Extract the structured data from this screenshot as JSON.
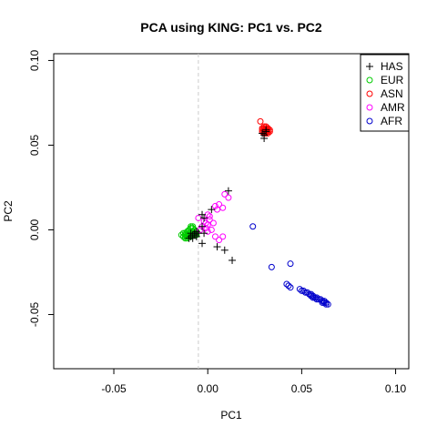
{
  "chart_data": {
    "type": "scatter",
    "title": "PCA using KING: PC1 vs. PC2",
    "xlabel": "PC1",
    "ylabel": "PC2",
    "xlim": [
      -0.082,
      0.107
    ],
    "ylim": [
      -0.082,
      0.104
    ],
    "xticks": [
      -0.05,
      0.0,
      0.05,
      0.1
    ],
    "xtick_labels": [
      "-0.05",
      "0.00",
      "0.05",
      "0.10"
    ],
    "yticks": [
      -0.05,
      0.0,
      0.05,
      0.1
    ],
    "ytick_labels": [
      "-0.05",
      "0.00",
      "0.05",
      "0.10"
    ],
    "reference_line": {
      "x": -0.005,
      "style": "dashed",
      "color": "#cccccc"
    },
    "legend_position": "top-right",
    "grid": false,
    "series": [
      {
        "name": "HAS",
        "marker": "plus",
        "color": "#000000",
        "points": [
          [
            0.011,
            0.023
          ],
          [
            0.002,
            0.012
          ],
          [
            -0.002,
            0.007
          ],
          [
            -0.003,
            0.009
          ],
          [
            -0.003,
            0.002
          ],
          [
            -0.002,
            -0.002
          ],
          [
            -0.003,
            -0.008
          ],
          [
            0.005,
            -0.01
          ],
          [
            0.009,
            -0.012
          ],
          [
            0.013,
            -0.018
          ],
          [
            -0.006,
            -0.001
          ],
          [
            -0.007,
            -0.002
          ],
          [
            -0.008,
            -0.003
          ],
          [
            -0.009,
            -0.004
          ],
          [
            -0.01,
            -0.005
          ],
          [
            -0.006,
            -0.004
          ],
          [
            -0.008,
            -0.005
          ],
          [
            -0.007,
            -0.003
          ],
          [
            -0.005,
            -0.002
          ],
          [
            -0.009,
            -0.002
          ],
          [
            0.03,
            0.054
          ],
          [
            0.03,
            0.056
          ],
          [
            0.031,
            0.058
          ],
          [
            0.029,
            0.057
          ],
          [
            0.031,
            0.059
          ]
        ]
      },
      {
        "name": "EUR",
        "marker": "circle",
        "color": "#00cc00",
        "points": [
          [
            -0.014,
            -0.003
          ],
          [
            -0.013,
            -0.004
          ],
          [
            -0.012,
            -0.002
          ],
          [
            -0.012,
            -0.005
          ],
          [
            -0.011,
            -0.003
          ],
          [
            -0.011,
            -0.004
          ],
          [
            -0.01,
            -0.002
          ],
          [
            -0.01,
            -0.001
          ],
          [
            -0.01,
            0.0
          ],
          [
            -0.009,
            0.001
          ],
          [
            -0.009,
            -0.002
          ],
          [
            -0.009,
            -0.004
          ],
          [
            -0.008,
            0.001
          ],
          [
            -0.008,
            -0.001
          ],
          [
            -0.008,
            -0.003
          ],
          [
            -0.007,
            0.0
          ],
          [
            -0.007,
            -0.002
          ],
          [
            -0.006,
            -0.001
          ],
          [
            -0.013,
            -0.002
          ],
          [
            -0.012,
            -0.003
          ],
          [
            -0.011,
            -0.005
          ],
          [
            -0.01,
            -0.004
          ],
          [
            -0.009,
            0.002
          ],
          [
            -0.008,
            0.002
          ],
          [
            -0.009,
            -0.001
          ],
          [
            -0.007,
            -0.003
          ],
          [
            -0.006,
            -0.003
          ],
          [
            -0.011,
            -0.001
          ],
          [
            -0.01,
            -0.003
          ],
          [
            -0.012,
            -0.004
          ]
        ]
      },
      {
        "name": "ASN",
        "marker": "circle",
        "color": "#ff0000",
        "points": [
          [
            0.028,
            0.064
          ],
          [
            0.029,
            0.058
          ],
          [
            0.029,
            0.06
          ],
          [
            0.03,
            0.057
          ],
          [
            0.03,
            0.058
          ],
          [
            0.03,
            0.059
          ],
          [
            0.03,
            0.061
          ],
          [
            0.031,
            0.057
          ],
          [
            0.031,
            0.058
          ],
          [
            0.031,
            0.059
          ],
          [
            0.031,
            0.06
          ],
          [
            0.032,
            0.058
          ],
          [
            0.032,
            0.059
          ],
          [
            0.032,
            0.06
          ],
          [
            0.033,
            0.058
          ],
          [
            0.033,
            0.059
          ],
          [
            0.029,
            0.059
          ],
          [
            0.03,
            0.06
          ],
          [
            0.031,
            0.061
          ],
          [
            0.032,
            0.057
          ]
        ]
      },
      {
        "name": "AMR",
        "marker": "circle",
        "color": "#ff00ff",
        "points": [
          [
            0.009,
            0.021
          ],
          [
            0.011,
            0.019
          ],
          [
            0.004,
            0.014
          ],
          [
            0.006,
            0.015
          ],
          [
            0.008,
            0.013
          ],
          [
            0.005,
            0.012
          ],
          [
            0.0,
            0.009
          ],
          [
            0.001,
            0.006
          ],
          [
            -0.001,
            0.004
          ],
          [
            0.0,
            0.003
          ],
          [
            -0.002,
            0.005
          ],
          [
            0.003,
            0.004
          ],
          [
            -0.003,
            0.002
          ],
          [
            -0.001,
            0.001
          ],
          [
            0.002,
            0.0
          ],
          [
            0.004,
            -0.004
          ],
          [
            0.006,
            -0.006
          ],
          [
            0.008,
            -0.004
          ],
          [
            -0.005,
            0.007
          ],
          [
            0.001,
            0.008
          ],
          [
            -0.004,
            0.0
          ],
          [
            0.0,
            -0.001
          ]
        ]
      },
      {
        "name": "AFR",
        "marker": "circle",
        "color": "#0000cc",
        "points": [
          [
            0.024,
            0.002
          ],
          [
            0.034,
            -0.022
          ],
          [
            0.044,
            -0.02
          ],
          [
            0.042,
            -0.032
          ],
          [
            0.043,
            -0.033
          ],
          [
            0.044,
            -0.034
          ],
          [
            0.049,
            -0.035
          ],
          [
            0.05,
            -0.036
          ],
          [
            0.051,
            -0.036
          ],
          [
            0.052,
            -0.037
          ],
          [
            0.053,
            -0.037
          ],
          [
            0.054,
            -0.038
          ],
          [
            0.055,
            -0.038
          ],
          [
            0.055,
            -0.039
          ],
          [
            0.056,
            -0.039
          ],
          [
            0.057,
            -0.04
          ],
          [
            0.058,
            -0.04
          ],
          [
            0.059,
            -0.041
          ],
          [
            0.06,
            -0.041
          ],
          [
            0.061,
            -0.042
          ],
          [
            0.062,
            -0.042
          ],
          [
            0.062,
            -0.043
          ],
          [
            0.063,
            -0.043
          ],
          [
            0.064,
            -0.044
          ],
          [
            0.063,
            -0.044
          ],
          [
            0.061,
            -0.043
          ],
          [
            0.058,
            -0.041
          ],
          [
            0.056,
            -0.04
          ]
        ]
      }
    ]
  }
}
